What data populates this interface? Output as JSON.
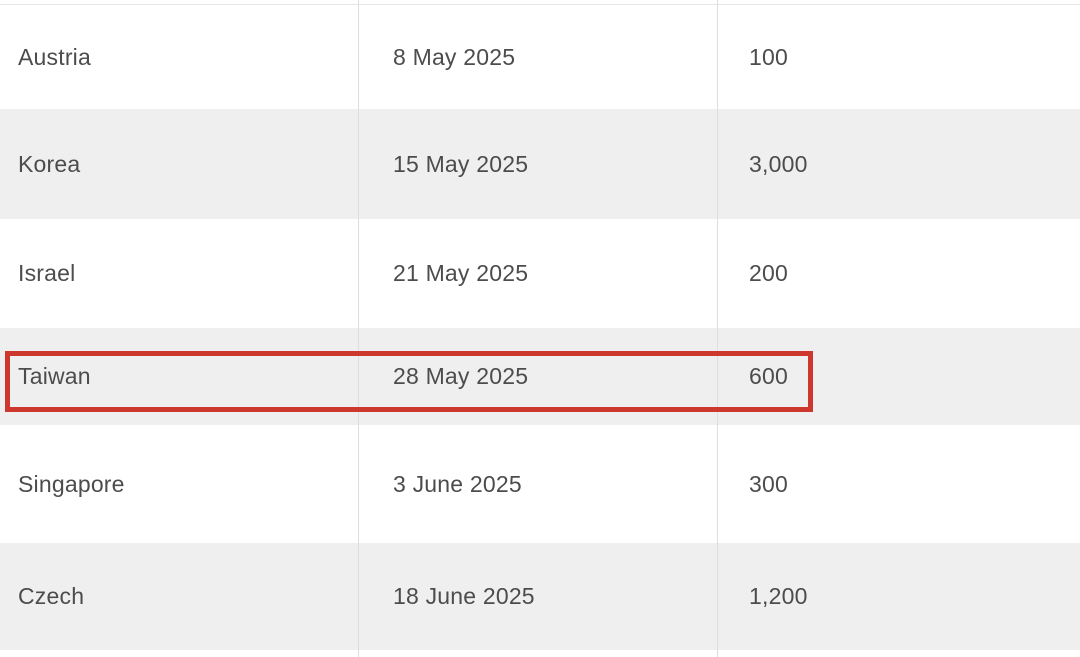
{
  "table": {
    "rows": [
      {
        "country": "Austria",
        "date": "8 May 2025",
        "value": "100"
      },
      {
        "country": "Korea",
        "date": "15 May 2025",
        "value": "3,000"
      },
      {
        "country": "Israel",
        "date": "21 May 2025",
        "value": "200"
      },
      {
        "country": "Taiwan",
        "date": "28 May 2025",
        "value": "600"
      },
      {
        "country": "Singapore",
        "date": "3 June 2025",
        "value": "300"
      },
      {
        "country": "Czech",
        "date": "18 June 2025",
        "value": "1,200"
      }
    ],
    "highlight": {
      "row": "Taiwan",
      "color": "#cd372d"
    }
  },
  "chart_data": {
    "type": "table",
    "rows": [
      [
        "Austria",
        "8 May 2025",
        "100"
      ],
      [
        "Korea",
        "15 May 2025",
        "3,000"
      ],
      [
        "Israel",
        "21 May 2025",
        "200"
      ],
      [
        "Taiwan",
        "28 May 2025",
        "600"
      ],
      [
        "Singapore",
        "3 June 2025",
        "300"
      ],
      [
        "Czech",
        "18 June 2025",
        "1,200"
      ]
    ],
    "values": [
      100,
      3000,
      200,
      600,
      300,
      1200
    ],
    "highlighted_row": "Taiwan",
    "title": "",
    "layout": {
      "header_visible": false,
      "striped": true
    }
  },
  "colors": {
    "row_shaded": "#efeff0",
    "row_plain": "#ffffff",
    "text": "#4c4c4c",
    "divider": "#dedede",
    "highlight": "#cd372d"
  }
}
